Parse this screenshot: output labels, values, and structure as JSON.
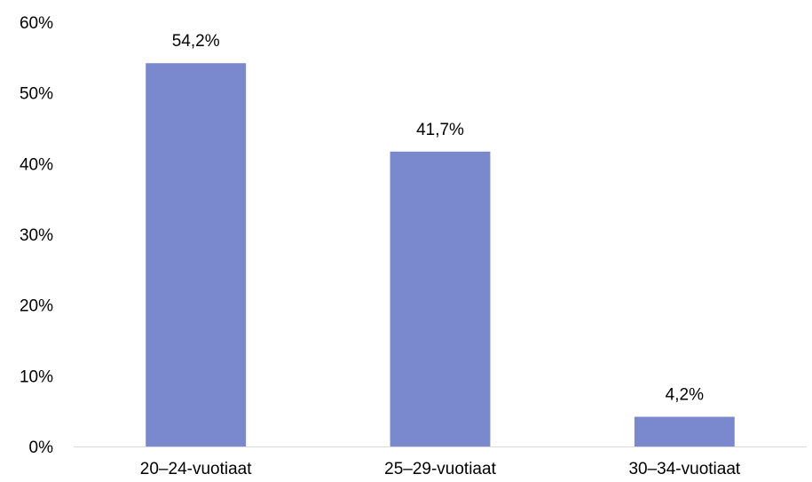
{
  "chart_data": {
    "type": "bar",
    "categories": [
      "20–24-vuotiaat",
      "25–29-vuotiaat",
      "30–34-vuotiaat"
    ],
    "values": [
      54.2,
      41.7,
      4.2
    ],
    "data_labels": [
      "54,2%",
      "41,7%",
      "4,2%"
    ],
    "yticks": [
      "0%",
      "10%",
      "20%",
      "30%",
      "40%",
      "50%",
      "60%"
    ],
    "ylim": [
      0,
      60
    ],
    "grid": false,
    "legend": "none",
    "bar_color": "#7a89cd",
    "axis_color": "#d9d9d9"
  }
}
